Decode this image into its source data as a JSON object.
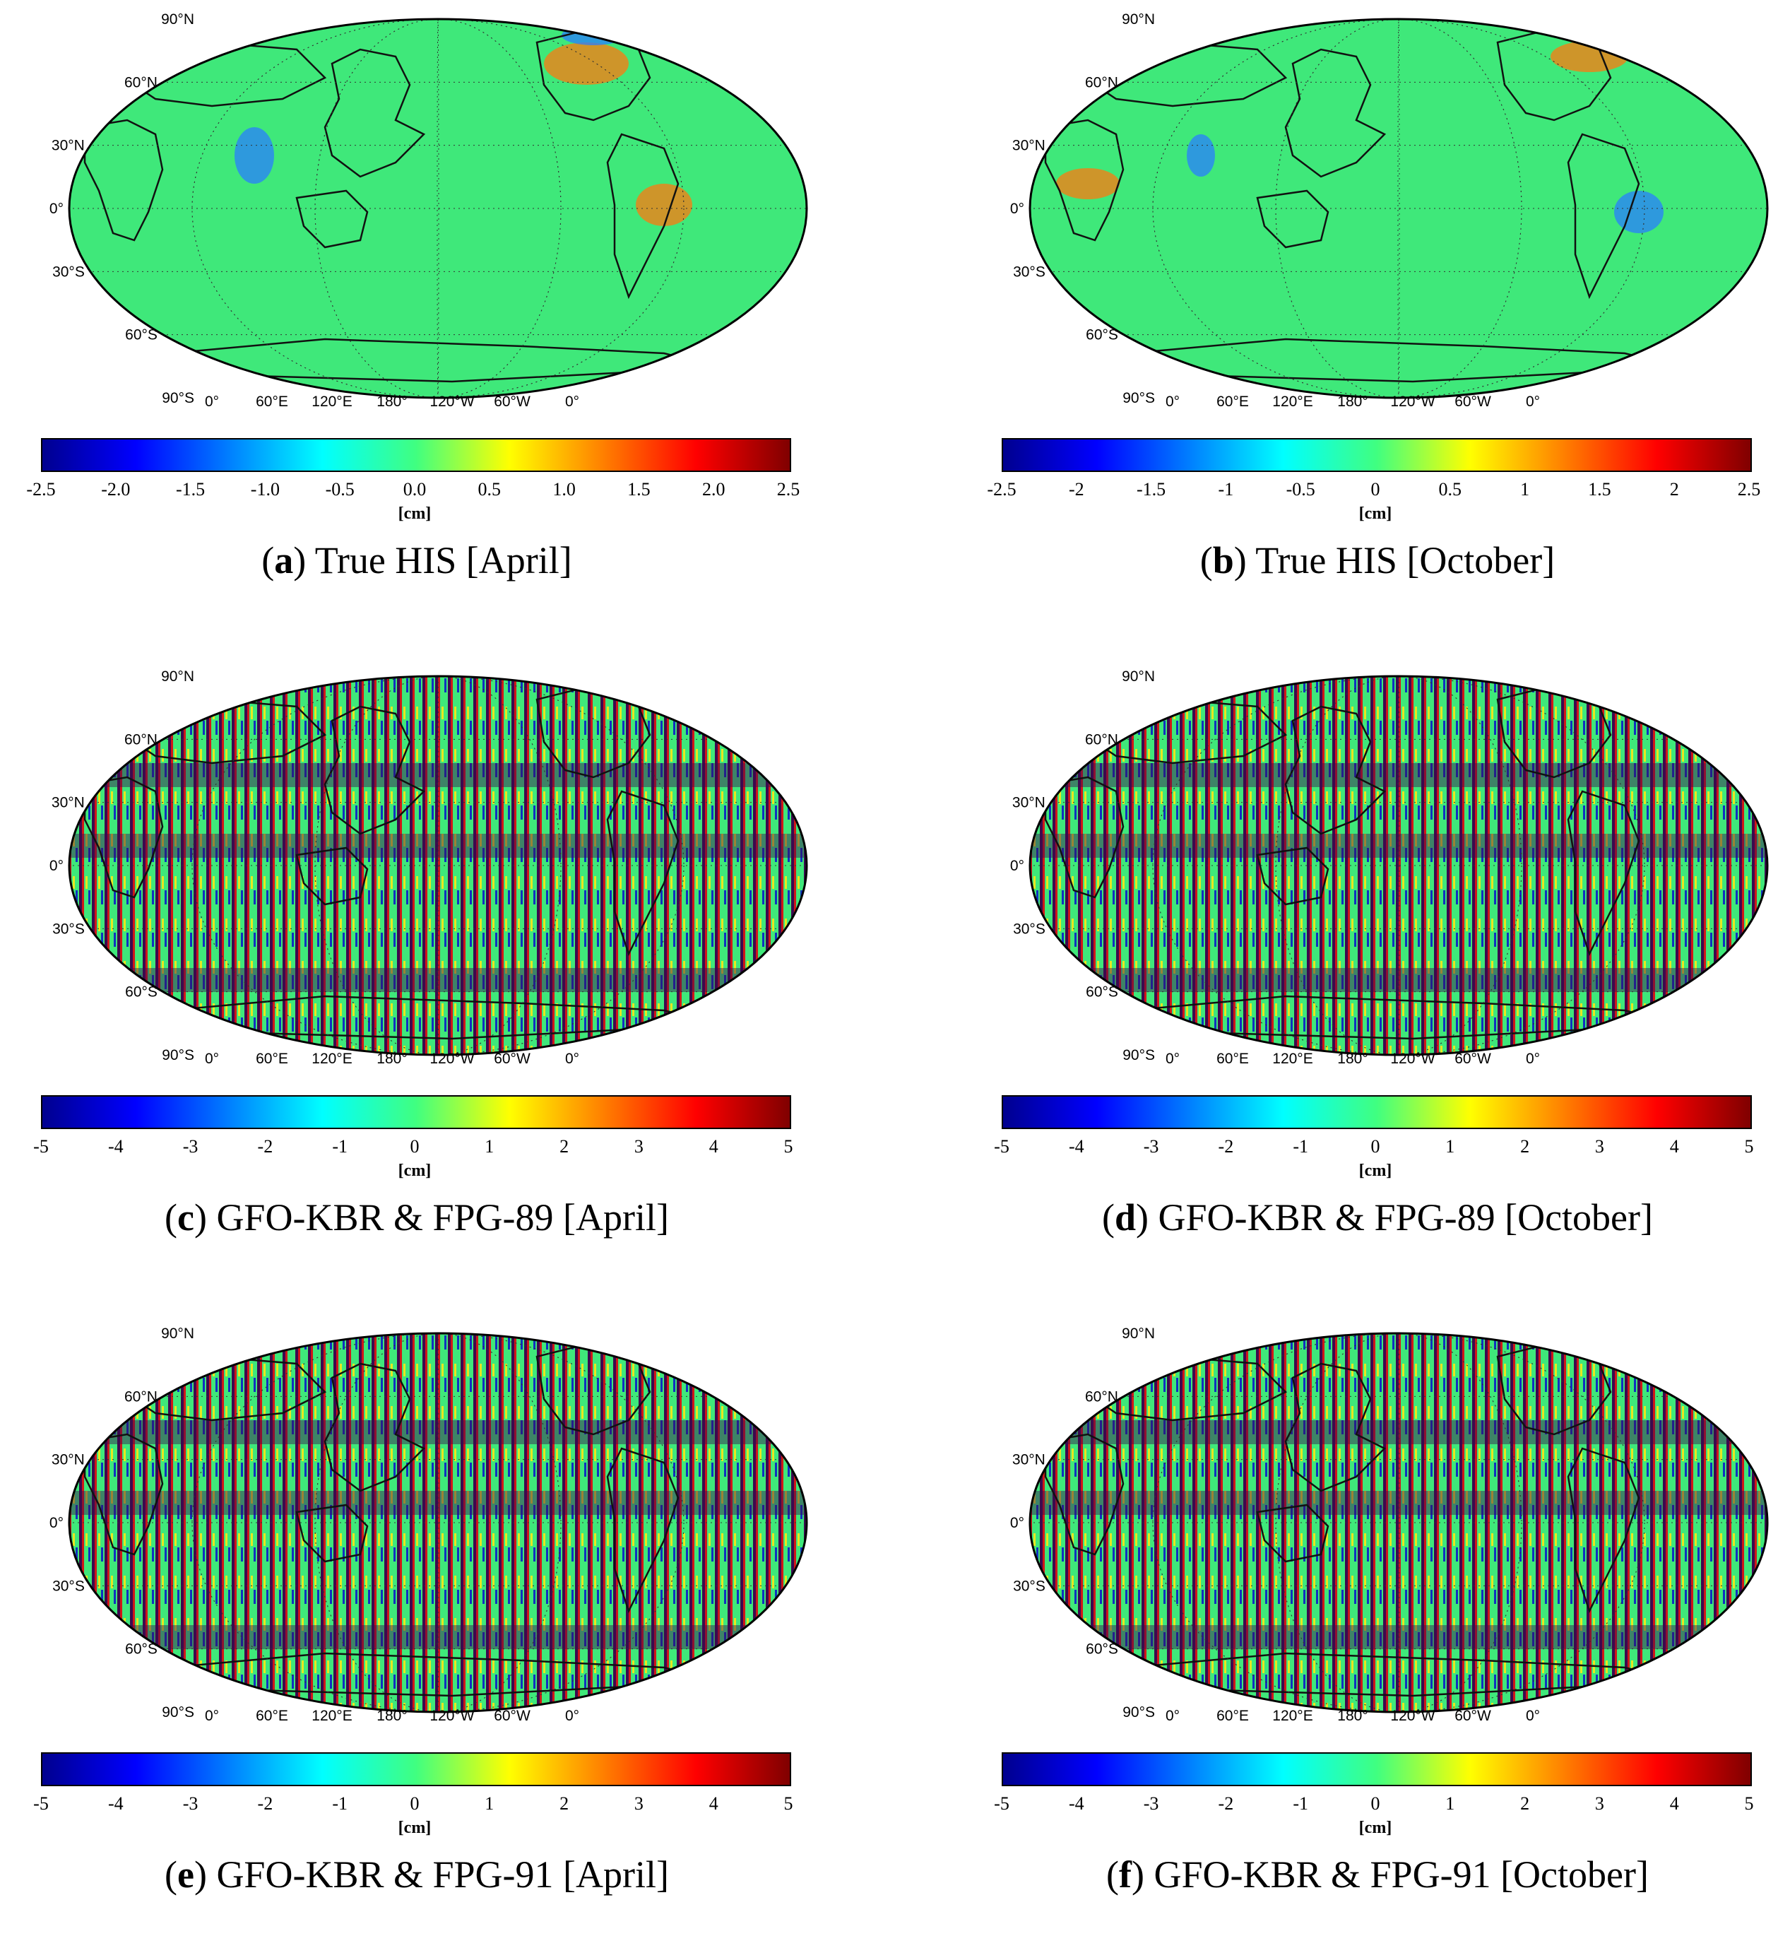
{
  "panels": [
    {
      "id": "a",
      "letter": "a",
      "title": "True HIS [April]",
      "pattern": "smooth",
      "ticks": [
        "-2.5",
        "-2.0",
        "-1.5",
        "-1.0",
        "-0.5",
        "0.0",
        "0.5",
        "1.0",
        "1.5",
        "2.0",
        "2.5"
      ],
      "range": [
        -2.5,
        2.5
      ],
      "unit": "[cm]"
    },
    {
      "id": "b",
      "letter": "b",
      "title": "True HIS [October]",
      "pattern": "smooth",
      "ticks": [
        "-2.5",
        "-2",
        "-1.5",
        "-1",
        "-0.5",
        "0",
        "0.5",
        "1",
        "1.5",
        "2",
        "2.5"
      ],
      "range": [
        -2.5,
        2.5
      ],
      "unit": "[cm]"
    },
    {
      "id": "c",
      "letter": "c",
      "title": "GFO-KBR & FPG-89 [April]",
      "pattern": "striped",
      "ticks": [
        "-5",
        "-4",
        "-3",
        "-2",
        "-1",
        "0",
        "1",
        "2",
        "3",
        "4",
        "5"
      ],
      "range": [
        -5,
        5
      ],
      "unit": "[cm]"
    },
    {
      "id": "d",
      "letter": "d",
      "title": "GFO-KBR & FPG-89 [October]",
      "pattern": "striped",
      "ticks": [
        "-5",
        "-4",
        "-3",
        "-2",
        "-1",
        "0",
        "1",
        "2",
        "3",
        "4",
        "5"
      ],
      "range": [
        -5,
        5
      ],
      "unit": "[cm]"
    },
    {
      "id": "e",
      "letter": "e",
      "title": "GFO-KBR & FPG-91 [April]",
      "pattern": "striped",
      "ticks": [
        "-5",
        "-4",
        "-3",
        "-2",
        "-1",
        "0",
        "1",
        "2",
        "3",
        "4",
        "5"
      ],
      "range": [
        -5,
        5
      ],
      "unit": "[cm]"
    },
    {
      "id": "f",
      "letter": "f",
      "title": "GFO-KBR & FPG-91 [October]",
      "pattern": "striped",
      "ticks": [
        "-5",
        "-4",
        "-3",
        "-2",
        "-1",
        "0",
        "1",
        "2",
        "3",
        "4",
        "5"
      ],
      "range": [
        -5,
        5
      ],
      "unit": "[cm]"
    }
  ],
  "lat_labels": [
    "90°N",
    "60°N",
    "30°N",
    "0°",
    "30°S",
    "60°S",
    "90°S"
  ],
  "lon_labels": [
    "0°",
    "60°E",
    "120°E",
    "180°",
    "120°W",
    "60°W",
    "0°"
  ],
  "colors": {
    "ocean": "#3fe87a",
    "stripe_dark": "#3b0a4f",
    "stripe_red": "#d01818",
    "stripe_blue": "#1030c0",
    "stripe_yellow": "#e8e820",
    "positive_anomaly": "#ff7a10",
    "negative_anomaly": "#2a7fff"
  }
}
